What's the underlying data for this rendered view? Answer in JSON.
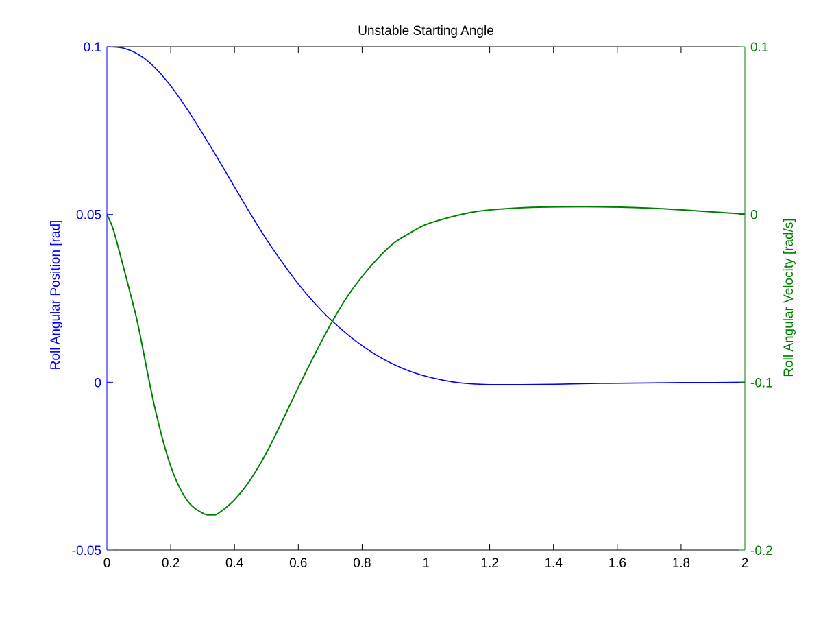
{
  "chart_data": {
    "type": "line",
    "title": "Unstable Starting Angle",
    "xlabel": "",
    "xlim": [
      0,
      2
    ],
    "x_ticks": [
      0,
      0.2,
      0.4,
      0.6,
      0.8,
      1,
      1.2,
      1.4,
      1.6,
      1.8,
      2
    ],
    "x_tick_labels": [
      "0",
      "0.2",
      "0.4",
      "0.6",
      "0.8",
      "1",
      "1.2",
      "1.4",
      "1.6",
      "1.8",
      "2"
    ],
    "left_axis": {
      "label": "Roll Angular Position [rad]",
      "ylim": [
        -0.05,
        0.1
      ],
      "ticks": [
        -0.05,
        0,
        0.05,
        0.1
      ],
      "tick_labels": [
        "-0.05",
        "0",
        "0.05",
        "0.1"
      ],
      "color": "#0000ff"
    },
    "right_axis": {
      "label": "Roll Angular Velocity [rad/s]",
      "ylim": [
        -0.2,
        0.1
      ],
      "ticks": [
        -0.2,
        -0.1,
        0,
        0.1
      ],
      "tick_labels": [
        "-0.2",
        "-0.1",
        "0",
        "0.1"
      ],
      "color": "#007f00"
    },
    "grid": false,
    "series": [
      {
        "axis": "left",
        "color": "#0000ff",
        "x": [
          0,
          0.05,
          0.1,
          0.15,
          0.2,
          0.25,
          0.3,
          0.35,
          0.4,
          0.45,
          0.5,
          0.55,
          0.6,
          0.65,
          0.7,
          0.75,
          0.8,
          0.85,
          0.9,
          0.95,
          1.0,
          1.05,
          1.1,
          1.15,
          1.2,
          1.3,
          1.4,
          1.5,
          1.6,
          1.7,
          1.8,
          1.9,
          2.0
        ],
        "values": [
          0.1,
          0.0996,
          0.0976,
          0.0938,
          0.0883,
          0.0816,
          0.0741,
          0.0663,
          0.0582,
          0.0502,
          0.0426,
          0.0357,
          0.0293,
          0.0237,
          0.0188,
          0.0146,
          0.0109,
          0.0078,
          0.0053,
          0.0033,
          0.0018,
          0.0007,
          -0.0001,
          -0.0005,
          -0.0007,
          -0.0007,
          -0.0006,
          -0.0004,
          -0.0003,
          -0.0002,
          -0.0001,
          -0.0001,
          0.0
        ]
      },
      {
        "axis": "right",
        "color": "#007f00",
        "x": [
          0,
          0.02,
          0.05,
          0.08,
          0.1,
          0.15,
          0.2,
          0.25,
          0.3,
          0.33,
          0.35,
          0.4,
          0.45,
          0.5,
          0.55,
          0.6,
          0.65,
          0.7,
          0.75,
          0.8,
          0.85,
          0.9,
          0.95,
          1.0,
          1.05,
          1.1,
          1.15,
          1.2,
          1.3,
          1.4,
          1.5,
          1.6,
          1.7,
          1.8,
          1.9,
          2.0
        ],
        "values": [
          0,
          -0.009,
          -0.03,
          -0.052,
          -0.068,
          -0.115,
          -0.15,
          -0.17,
          -0.178,
          -0.179,
          -0.178,
          -0.17,
          -0.158,
          -0.142,
          -0.123,
          -0.103,
          -0.084,
          -0.066,
          -0.05,
          -0.037,
          -0.026,
          -0.017,
          -0.011,
          -0.006,
          -0.003,
          -0.0005,
          0.0015,
          0.0027,
          0.004,
          0.0045,
          0.0046,
          0.0044,
          0.0038,
          0.0028,
          0.0015,
          0.0002
        ]
      }
    ]
  }
}
